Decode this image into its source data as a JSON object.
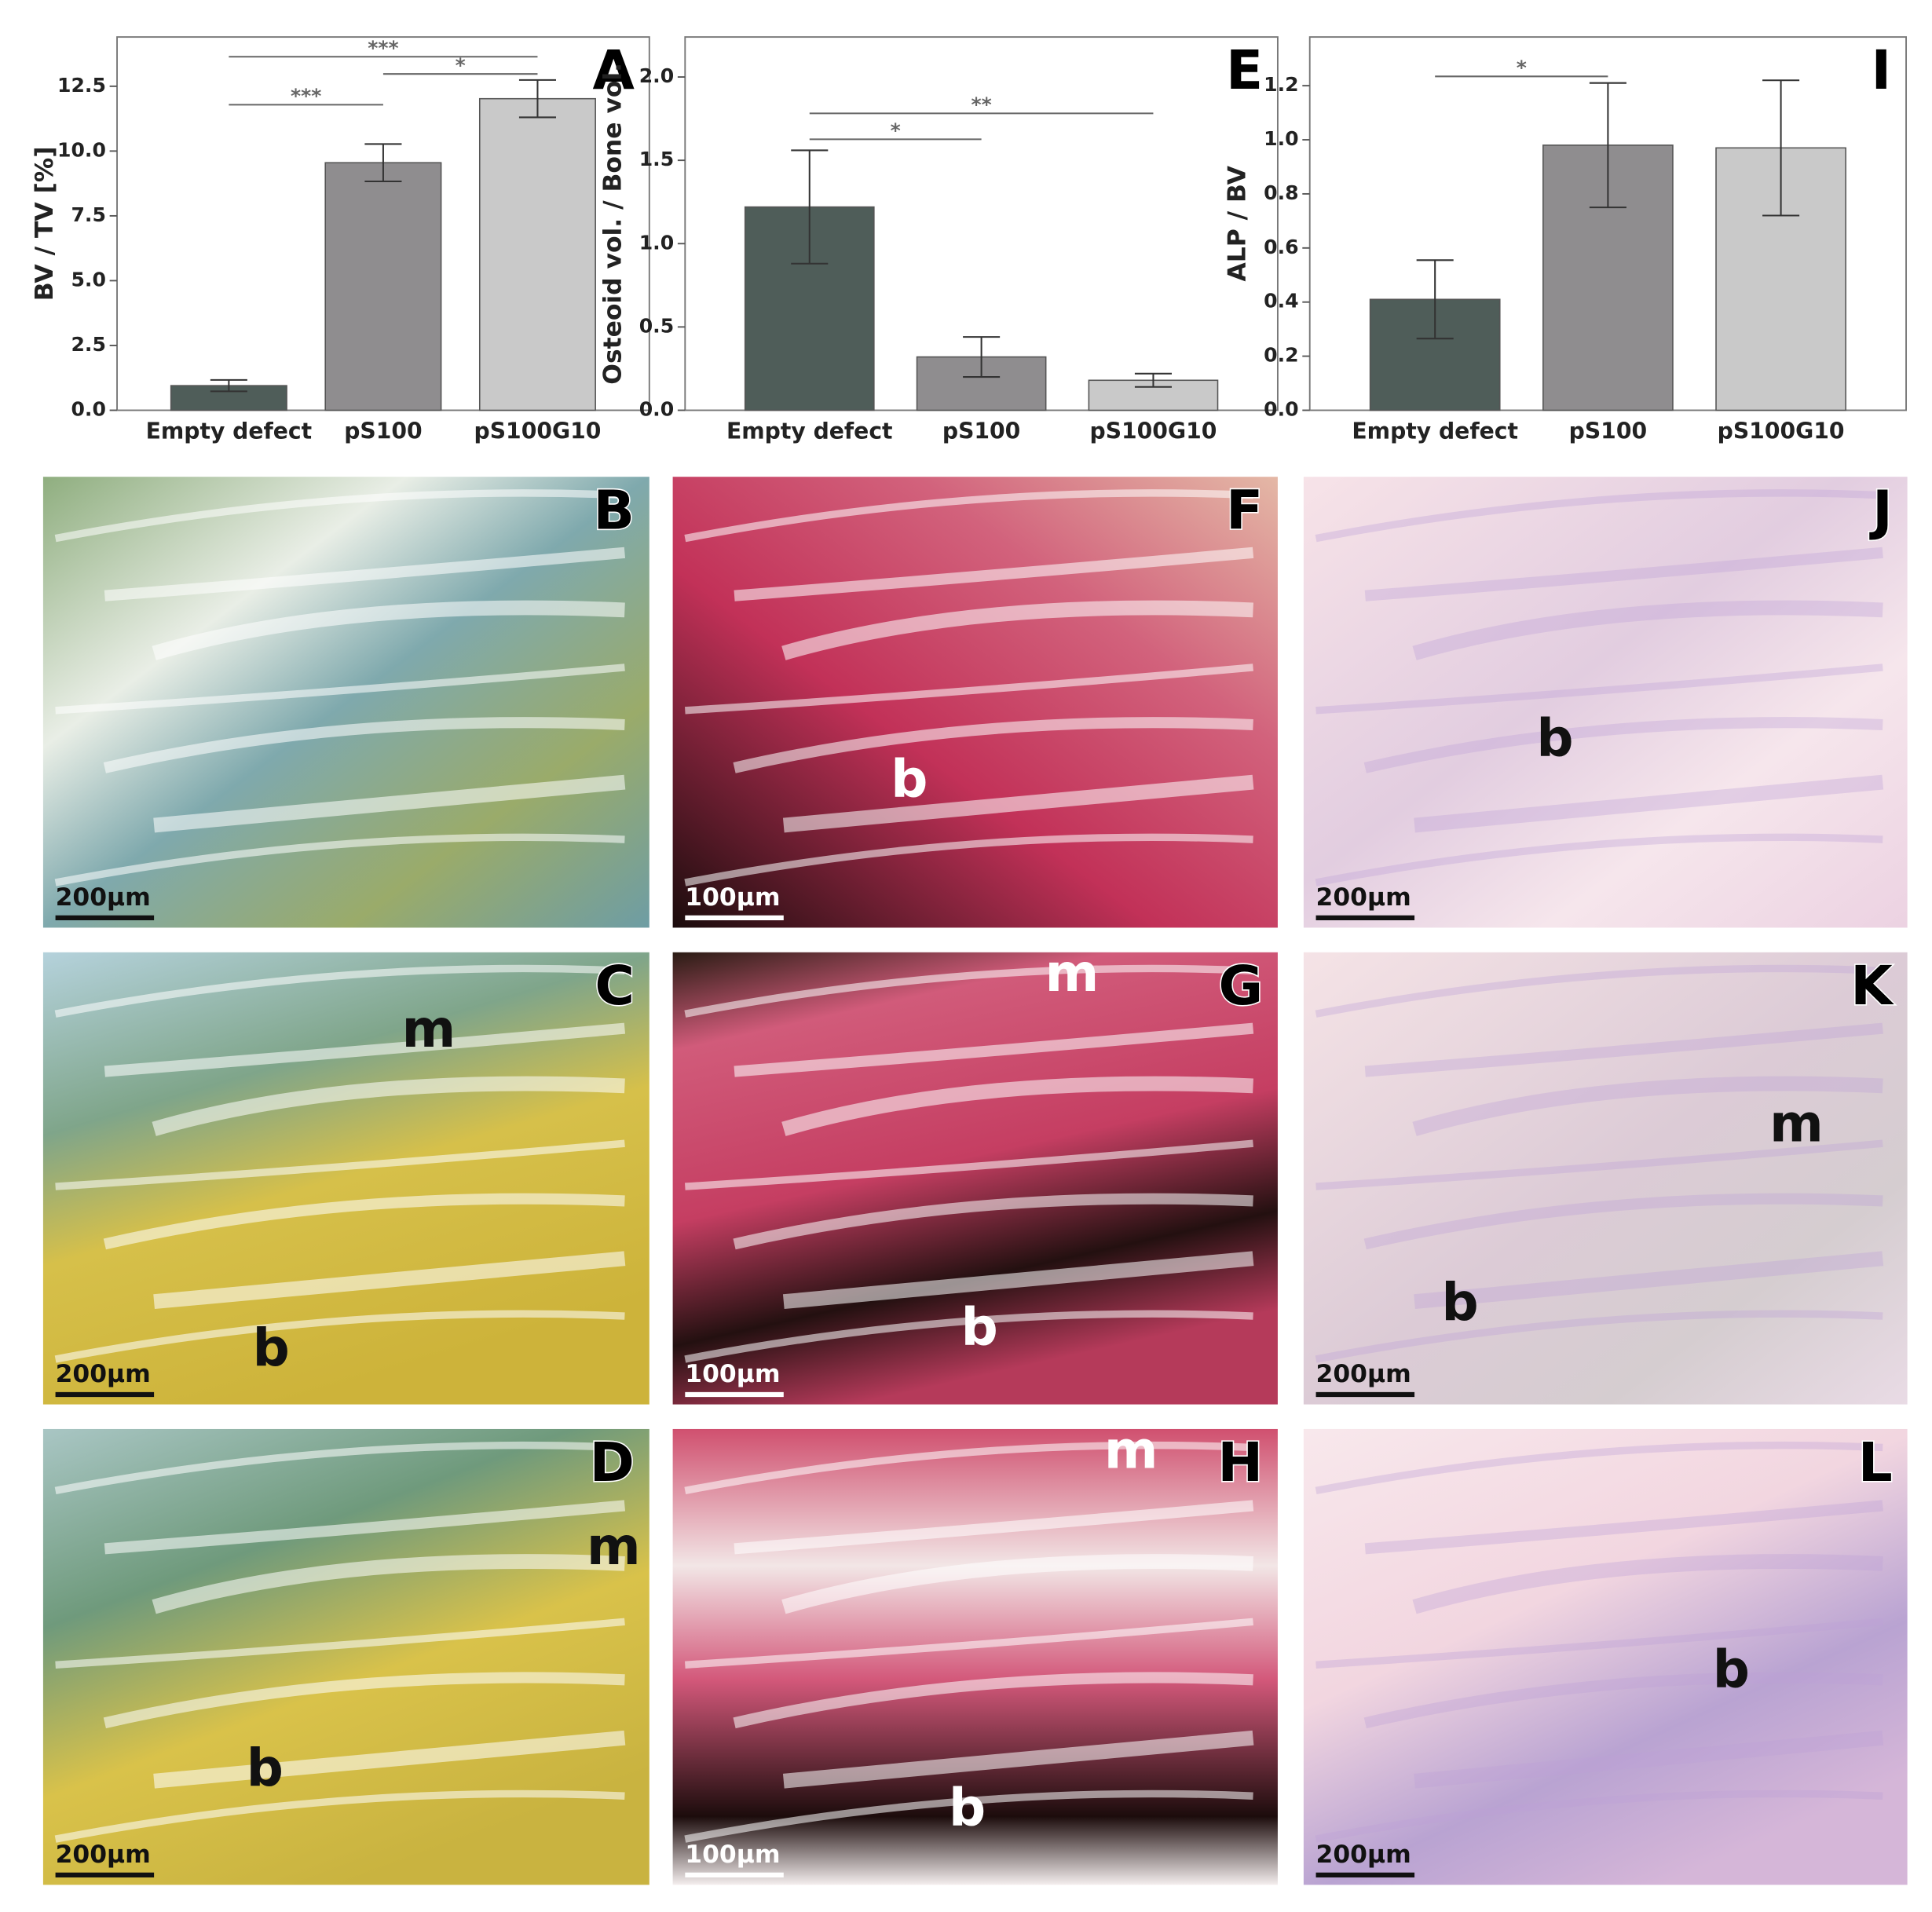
{
  "chart_data": [
    {
      "type": "bar",
      "panel": "A",
      "ylabel": "BV / TV [%]",
      "categories": [
        "Empty defect",
        "pS100",
        "pS100G10"
      ],
      "values": [
        0.95,
        9.55,
        12.02
      ],
      "errors": [
        0.22,
        0.72,
        0.72
      ],
      "colors": [
        "#4f5d59",
        "#8f8d8f",
        "#c9c9c9"
      ],
      "ylim": [
        0,
        14.4
      ],
      "yticks": [
        {
          "value": 0,
          "label": "0.0"
        },
        2.5,
        {
          "value": 5,
          "label": "5.0"
        },
        7.5,
        {
          "value": 10,
          "label": "10.0"
        },
        12.5
      ],
      "significance": [
        {
          "label": "***",
          "pair": [
            "Empty defect",
            "pS100"
          ]
        },
        {
          "label": "*",
          "pair": [
            "pS100",
            "pS100G10"
          ]
        },
        {
          "label": "***",
          "pair": [
            "Empty defect",
            "pS100G10"
          ]
        }
      ]
    },
    {
      "type": "bar",
      "panel": "E",
      "ylabel": "Osteoid vol. / Bone vol.",
      "categories": [
        "Empty defect",
        "pS100",
        "pS100G10"
      ],
      "values": [
        1.22,
        0.32,
        0.18
      ],
      "errors": [
        0.34,
        0.12,
        0.04
      ],
      "colors": [
        "#4f5d59",
        "#8f8d8f",
        "#c9c9c9"
      ],
      "ylim": [
        0,
        2.24
      ],
      "yticks": [
        {
          "value": 0,
          "label": "0.0"
        },
        0.5,
        {
          "value": 1,
          "label": "1.0"
        },
        1.5,
        {
          "value": 2,
          "label": "2.0"
        }
      ],
      "significance": [
        {
          "label": "*",
          "pair": [
            "Empty defect",
            "pS100"
          ]
        },
        {
          "label": "**",
          "pair": [
            "Empty defect",
            "pS100G10"
          ]
        }
      ]
    },
    {
      "type": "bar",
      "panel": "I",
      "ylabel": "ALP / BV",
      "categories": [
        "Empty defect",
        "pS100",
        "pS100G10"
      ],
      "values": [
        0.41,
        0.98,
        0.97
      ],
      "errors": [
        0.145,
        0.23,
        0.25
      ],
      "colors": [
        "#4f5d59",
        "#8f8d8f",
        "#c9c9c9"
      ],
      "ylim": [
        0,
        1.38
      ],
      "yticks": [
        {
          "value": 0,
          "label": "0.0"
        },
        0.2,
        0.4,
        0.6,
        0.8,
        {
          "value": 1,
          "label": "1.0"
        },
        1.2
      ],
      "significance": [
        {
          "label": "*",
          "pair": [
            "Empty defect",
            "pS100"
          ]
        }
      ]
    }
  ],
  "panels": [
    {
      "letter": "B",
      "scale_bar": "200µm",
      "labels": []
    },
    {
      "letter": "F",
      "scale_bar": "100µm",
      "labels": [
        "b"
      ]
    },
    {
      "letter": "J",
      "scale_bar": "200µm",
      "labels": [
        "b"
      ]
    },
    {
      "letter": "C",
      "scale_bar": "200µm",
      "labels": [
        "m",
        "b"
      ]
    },
    {
      "letter": "G",
      "scale_bar": "100µm",
      "labels": [
        "m",
        "b"
      ]
    },
    {
      "letter": "K",
      "scale_bar": "200µm",
      "labels": [
        "m",
        "b"
      ]
    },
    {
      "letter": "D",
      "scale_bar": "200µm",
      "labels": [
        "m",
        "b"
      ]
    },
    {
      "letter": "H",
      "scale_bar": "100µm",
      "labels": [
        "m",
        "b"
      ]
    },
    {
      "letter": "L",
      "scale_bar": "200µm",
      "labels": [
        "b"
      ]
    }
  ]
}
